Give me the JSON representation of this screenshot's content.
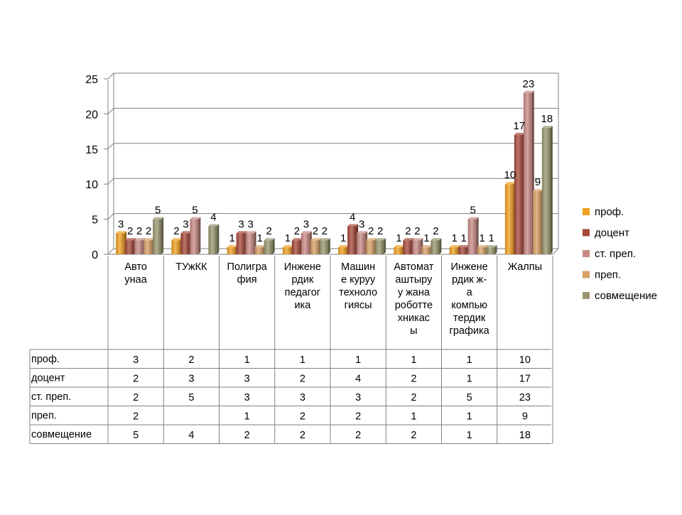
{
  "chart_data": {
    "type": "bar",
    "title": "",
    "xlabel": "",
    "ylabel": "",
    "ylim": [
      0,
      25
    ],
    "yticks": [
      0,
      5,
      10,
      15,
      20,
      25
    ],
    "grid": true,
    "legend_position": "right",
    "categories": [
      [
        "Авто",
        "унаа"
      ],
      [
        "ТУжКК"
      ],
      [
        "Полигра",
        "фия"
      ],
      [
        "Инжене",
        "рдик",
        "педагог",
        "ика"
      ],
      [
        "Машин",
        "е куруу",
        "техноло",
        "гиясы"
      ],
      [
        "Автомат",
        "аштыру",
        "у жана",
        "роботте",
        "хникас",
        "ы"
      ],
      [
        "Инжене",
        "рдик ж-",
        "а",
        "компью",
        "тердик",
        "графика"
      ],
      [
        "Жалпы"
      ]
    ],
    "series": [
      {
        "name": "проф.",
        "color": "#F0A020",
        "values": [
          3,
          2,
          1,
          1,
          1,
          1,
          1,
          10
        ]
      },
      {
        "name": "доцент",
        "color": "#A6483A",
        "values": [
          2,
          3,
          3,
          2,
          4,
          2,
          1,
          17
        ]
      },
      {
        "name": "ст. преп.",
        "color": "#C98A85",
        "values": [
          2,
          5,
          3,
          3,
          3,
          2,
          5,
          23
        ]
      },
      {
        "name": "преп.",
        "color": "#D9A066",
        "values": [
          2,
          null,
          1,
          2,
          2,
          1,
          1,
          9
        ]
      },
      {
        "name": "совмещение",
        "color": "#9A9770",
        "values": [
          5,
          4,
          2,
          2,
          2,
          2,
          1,
          18
        ]
      }
    ]
  }
}
